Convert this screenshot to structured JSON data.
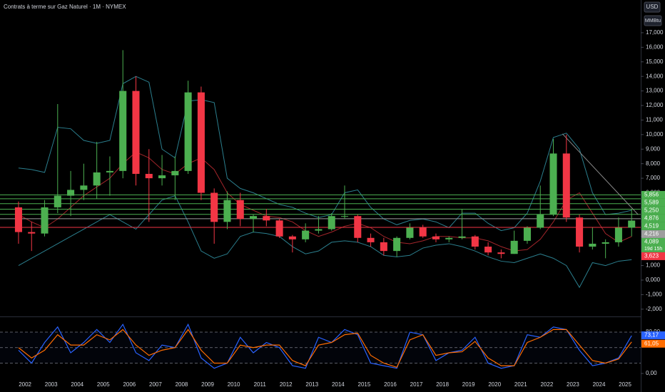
{
  "title": "Contrats à terme sur Gaz Naturel · 1M · NYMEX",
  "currency": "USD",
  "unit": "MMBtu",
  "chart_data": [
    {
      "type": "candlestick",
      "x": [
        2001.75,
        2002.25,
        2002.75,
        2003.25,
        2003.75,
        2004.25,
        2004.75,
        2005.25,
        2005.75,
        2006.25,
        2006.75,
        2007.25,
        2007.75,
        2008.25,
        2008.75,
        2009.25,
        2009.75,
        2010.25,
        2010.75,
        2011.25,
        2011.75,
        2012.25,
        2012.75,
        2013.25,
        2013.75,
        2014.25,
        2014.75,
        2015.25,
        2015.75,
        2016.25,
        2016.75,
        2017.25,
        2017.75,
        2018.25,
        2018.75,
        2019.25,
        2019.75,
        2020.25,
        2020.75,
        2021.25,
        2021.75,
        2022.25,
        2022.75,
        2023.25,
        2023.75,
        2024.25,
        2024.75,
        2025.25
      ],
      "open": [
        5.0,
        3.3,
        3.2,
        5.0,
        5.8,
        6.2,
        6.5,
        7.4,
        7.5,
        13.0,
        7.3,
        7.0,
        7.2,
        7.5,
        12.9,
        6.0,
        4.0,
        5.5,
        4.2,
        4.4,
        4.1,
        3.0,
        2.8,
        3.4,
        3.5,
        4.4,
        4.4,
        2.9,
        2.6,
        2.0,
        2.9,
        3.6,
        3.0,
        2.8,
        2.9,
        3.0,
        2.3,
        1.9,
        1.8,
        2.7,
        3.6,
        4.5,
        8.7,
        4.3,
        2.3,
        2.5,
        2.6,
        3.6
      ],
      "high": [
        5.4,
        4.0,
        5.5,
        12.1,
        7.5,
        8.0,
        9.5,
        8.5,
        15.8,
        14.0,
        9.0,
        8.6,
        8.5,
        13.7,
        13.3,
        6.3,
        6.1,
        6.0,
        4.5,
        4.9,
        4.2,
        3.1,
        3.9,
        4.4,
        4.6,
        6.5,
        4.5,
        3.2,
        2.9,
        3.0,
        3.9,
        3.8,
        3.2,
        3.0,
        4.9,
        3.1,
        2.6,
        2.1,
        3.4,
        3.7,
        6.5,
        9.7,
        10.0,
        4.5,
        3.6,
        2.8,
        4.3,
        4.9
      ],
      "low": [
        2.5,
        2.0,
        3.0,
        4.6,
        4.4,
        5.5,
        5.6,
        5.8,
        7.0,
        6.5,
        4.0,
        6.5,
        5.5,
        7.3,
        5.5,
        2.5,
        3.5,
        3.7,
        3.3,
        3.7,
        2.9,
        1.9,
        2.6,
        3.2,
        3.4,
        4.2,
        2.6,
        2.3,
        1.7,
        1.6,
        2.8,
        2.9,
        2.6,
        2.6,
        2.8,
        2.1,
        1.7,
        1.5,
        1.8,
        2.5,
        3.5,
        4.4,
        4.0,
        1.9,
        2.1,
        1.5,
        2.3,
        3.0
      ],
      "close": [
        3.3,
        3.2,
        5.0,
        5.8,
        6.2,
        6.5,
        7.4,
        7.5,
        13.0,
        7.3,
        7.0,
        7.2,
        7.5,
        12.9,
        6.0,
        4.0,
        5.5,
        4.2,
        4.4,
        4.1,
        3.0,
        2.8,
        3.4,
        3.5,
        4.4,
        4.4,
        2.9,
        2.6,
        2.0,
        2.9,
        3.6,
        3.0,
        2.8,
        2.9,
        3.0,
        2.3,
        1.9,
        1.8,
        2.7,
        3.6,
        4.5,
        8.7,
        4.3,
        2.3,
        2.5,
        2.6,
        3.6,
        4.089
      ],
      "close_label": "4,089",
      "countdown": "19d 15h",
      "up_color": "#4caf50",
      "down_color": "#f23645",
      "overlays": [
        {
          "color": "#2b7f8e",
          "values": [
            7.7,
            7.6,
            7.4,
            10.5,
            10.4,
            9.6,
            9.4,
            9.6,
            13.5,
            14.0,
            13.6,
            9.0,
            8.4,
            12.3,
            12.4,
            12.2,
            7.0,
            6.3,
            6.0,
            5.6,
            5.2,
            5.0,
            4.6,
            4.3,
            4.5,
            6.0,
            6.2,
            5.0,
            4.2,
            3.8,
            4.1,
            4.2,
            4.0,
            3.6,
            4.6,
            4.6,
            3.9,
            3.4,
            3.6,
            4.6,
            6.8,
            9.8,
            10.1,
            9.0,
            6.0,
            4.5,
            4.6,
            4.8
          ]
        },
        {
          "color": "#2b7f8e",
          "values": [
            1.0,
            1.5,
            2.0,
            2.5,
            3.0,
            3.5,
            4.0,
            4.5,
            4.0,
            3.5,
            4.5,
            5.5,
            5.8,
            4.0,
            2.0,
            1.5,
            1.8,
            3.0,
            3.3,
            3.2,
            3.0,
            2.3,
            1.8,
            2.0,
            2.6,
            2.7,
            2.6,
            2.3,
            1.7,
            1.6,
            1.7,
            2.2,
            2.4,
            2.5,
            2.3,
            2.0,
            1.6,
            1.3,
            1.2,
            1.5,
            1.8,
            1.5,
            1.0,
            -0.5,
            1.2,
            1.0,
            1.3,
            1.4
          ]
        },
        {
          "color": "#a3262b",
          "values": [
            4.5,
            4.0,
            3.6,
            4.2,
            5.0,
            5.8,
            6.4,
            7.0,
            8.0,
            8.8,
            8.4,
            7.6,
            7.3,
            8.0,
            8.4,
            7.6,
            6.0,
            5.2,
            4.8,
            4.4,
            4.3,
            4.0,
            3.4,
            3.0,
            3.3,
            3.7,
            3.9,
            3.6,
            3.0,
            2.6,
            2.5,
            2.7,
            3.0,
            3.0,
            2.9,
            2.9,
            2.7,
            2.3,
            2.0,
            2.1,
            2.8,
            4.0,
            5.5,
            6.0,
            4.6,
            3.2,
            2.6,
            3.0
          ]
        }
      ],
      "levels": [
        {
          "value": 5.856,
          "label": "5,856",
          "color": "#4caf50"
        },
        {
          "value": 5.589,
          "label": "5,589",
          "color": "#4caf50"
        },
        {
          "value": 5.25,
          "label": "5,250",
          "color": "#4caf50"
        },
        {
          "value": 4.876,
          "label": "4,876",
          "color": "#4caf50"
        },
        {
          "value": 4.519,
          "label": "4,519",
          "color": "#4caf50"
        },
        {
          "value": 4.216,
          "label": "4,216",
          "color": "#9e9e9e"
        },
        {
          "value": 3.623,
          "label": "3,623",
          "color": "#f23645"
        }
      ],
      "trendline": {
        "x": [
          2022.6,
          2025.5
        ],
        "y": [
          10.05,
          4.5
        ],
        "color": "#8a8a8a"
      },
      "xlim": [
        2001.04,
        2025.6
      ],
      "ylim": [
        -2.45,
        19.25
      ],
      "xticks": [
        2002,
        2003,
        2004,
        2005,
        2006,
        2007,
        2008,
        2009,
        2010,
        2011,
        2012,
        2013,
        2014,
        2015,
        2016,
        2017,
        2018,
        2019,
        2020,
        2021,
        2022,
        2023,
        2024,
        2025
      ],
      "yticks": [
        {
          "value": -2,
          "label": "-2,000"
        },
        {
          "value": -1,
          "label": "-1,000"
        },
        {
          "value": 0,
          "label": "0,000"
        },
        {
          "value": 1,
          "label": "1,000"
        },
        {
          "value": 2,
          "label": "2,000"
        },
        {
          "value": 3,
          "label": "3,000"
        },
        {
          "value": 4,
          "label": "4,000"
        },
        {
          "value": 5,
          "label": "5,000"
        },
        {
          "value": 6,
          "label": "6,000"
        },
        {
          "value": 7,
          "label": "7,000"
        },
        {
          "value": 8,
          "label": "8,000"
        },
        {
          "value": 9,
          "label": "9,000"
        },
        {
          "value": 10,
          "label": "10,000"
        },
        {
          "value": 11,
          "label": "11,000"
        },
        {
          "value": 12,
          "label": "12,000"
        },
        {
          "value": 13,
          "label": "13,000"
        },
        {
          "value": 14,
          "label": "14,000"
        },
        {
          "value": 15,
          "label": "15,000"
        },
        {
          "value": 16,
          "label": "16,000"
        },
        {
          "value": 17,
          "label": "17,000"
        }
      ]
    },
    {
      "type": "line",
      "series": [
        {
          "color": "#2962ff",
          "values": [
            45,
            20,
            60,
            90,
            40,
            60,
            85,
            60,
            95,
            40,
            25,
            55,
            50,
            95,
            30,
            10,
            20,
            70,
            40,
            60,
            50,
            15,
            10,
            70,
            60,
            85,
            75,
            20,
            15,
            10,
            80,
            75,
            25,
            40,
            45,
            70,
            20,
            10,
            15,
            75,
            70,
            90,
            85,
            45,
            15,
            20,
            30,
            73.17
          ],
          "last_label": "73,17"
        },
        {
          "color": "#ff6d00",
          "values": [
            50,
            30,
            45,
            75,
            55,
            55,
            75,
            65,
            85,
            55,
            35,
            45,
            50,
            85,
            45,
            20,
            20,
            55,
            50,
            55,
            55,
            25,
            15,
            55,
            60,
            75,
            78,
            35,
            20,
            12,
            65,
            75,
            35,
            40,
            42,
            62,
            30,
            15,
            15,
            60,
            70,
            85,
            85,
            55,
            25,
            20,
            28,
            61.05
          ],
          "last_label": "61,05"
        }
      ],
      "bands": [
        20,
        50,
        80
      ],
      "ylim": [
        -15.2,
        107.6
      ],
      "yticks": [
        {
          "value": 0,
          "label": "0,00"
        },
        {
          "value": 80,
          "label": "80,00"
        }
      ]
    }
  ]
}
